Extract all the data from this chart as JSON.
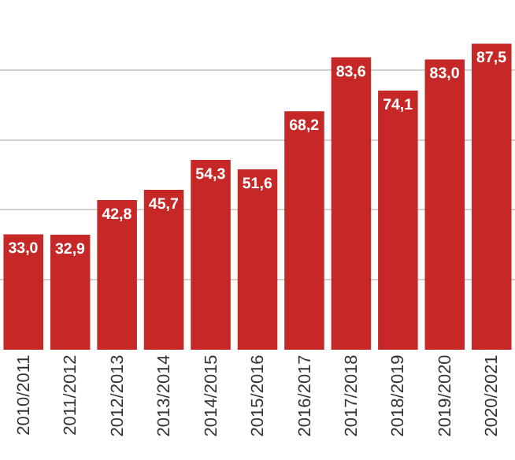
{
  "chart_data": {
    "type": "bar",
    "categories": [
      "2010/2011",
      "2011/2012",
      "2012/2013",
      "2013/2014",
      "2014/2015",
      "2015/2016",
      "2016/2017",
      "2017/2018",
      "2018/2019",
      "2019/2020",
      "2020/2021"
    ],
    "values": [
      33.0,
      32.9,
      42.8,
      45.7,
      54.3,
      51.6,
      68.2,
      83.6,
      74.1,
      83.0,
      87.5
    ],
    "value_labels": [
      "33,0",
      "32,9",
      "42,8",
      "45,7",
      "54,3",
      "51,6",
      "68,2",
      "83,6",
      "74,1",
      "83,0",
      "87,5"
    ],
    "color": "#c62828",
    "ylim": [
      0,
      100
    ],
    "grid": "y",
    "tick_labels": "x"
  }
}
